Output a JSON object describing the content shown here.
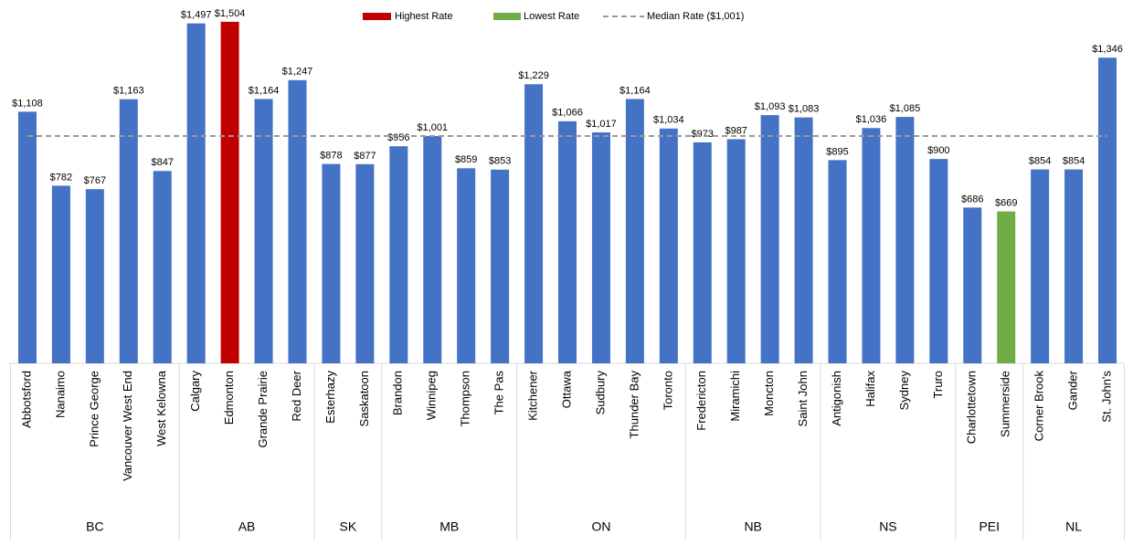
{
  "chart_data": {
    "type": "bar",
    "color": "#4472c4",
    "highest_color": "#c00000",
    "lowest_color": "#70ad47",
    "median_color": "#999999",
    "legend": {
      "highest": "Highest Rate",
      "lowest": "Lowest Rate",
      "median": "Median Rate ($1,001)"
    },
    "median": 1001,
    "ylim": [
      0,
      1600
    ],
    "groups": [
      {
        "name": "BC",
        "categories": [
          "Abbotsford",
          "Nanaimo",
          "Prince George",
          "Vancouver West End",
          "West Kelowna"
        ],
        "values": [
          1108,
          782,
          767,
          1163,
          847
        ],
        "value_labels": [
          "$1,108",
          "$782",
          "$767",
          "$1,163",
          "$847"
        ]
      },
      {
        "name": "AB",
        "categories": [
          "Calgary",
          "Edmonton",
          "Grande Prairie",
          "Red Deer"
        ],
        "values": [
          1497,
          1504,
          1164,
          1247
        ],
        "value_labels": [
          "$1,497",
          "$1,504",
          "$1,164",
          "$1,247"
        ]
      },
      {
        "name": "SK",
        "categories": [
          "Esterhazy",
          "Saskatoon"
        ],
        "values": [
          878,
          877
        ],
        "value_labels": [
          "$878",
          "$877"
        ]
      },
      {
        "name": "MB",
        "categories": [
          "Brandon",
          "Winnipeg",
          "Thompson",
          "The Pas"
        ],
        "values": [
          956,
          1001,
          859,
          853
        ],
        "value_labels": [
          "$956",
          "$1,001",
          "$859",
          "$853"
        ]
      },
      {
        "name": "ON",
        "categories": [
          "Kitchener",
          "Ottawa",
          "Sudbury",
          "Thunder Bay",
          "Toronto"
        ],
        "values": [
          1229,
          1066,
          1017,
          1164,
          1034
        ],
        "value_labels": [
          "$1,229",
          "$1,066",
          "$1,017",
          "$1,164",
          "$1,034"
        ]
      },
      {
        "name": "NB",
        "categories": [
          "Fredericton",
          "Miramichi",
          "Moncton",
          "Saint John"
        ],
        "values": [
          973,
          987,
          1093,
          1083
        ],
        "value_labels": [
          "$973",
          "$987",
          "$1,093",
          "$1,083"
        ]
      },
      {
        "name": "NS",
        "categories": [
          "Antigonish",
          "Halifax",
          "Sydney",
          "Truro"
        ],
        "values": [
          895,
          1036,
          1085,
          900
        ],
        "value_labels": [
          "$895",
          "$1,036",
          "$1,085",
          "$900"
        ]
      },
      {
        "name": "PEI",
        "categories": [
          "Charlottetown",
          "Summerside"
        ],
        "values": [
          686,
          669
        ],
        "value_labels": [
          "$686",
          "$669"
        ]
      },
      {
        "name": "NL",
        "categories": [
          "Corner Brook",
          "Gander",
          "St. John's"
        ],
        "values": [
          854,
          854,
          1346
        ],
        "value_labels": [
          "$854",
          "$854",
          "$1,346"
        ]
      }
    ]
  }
}
